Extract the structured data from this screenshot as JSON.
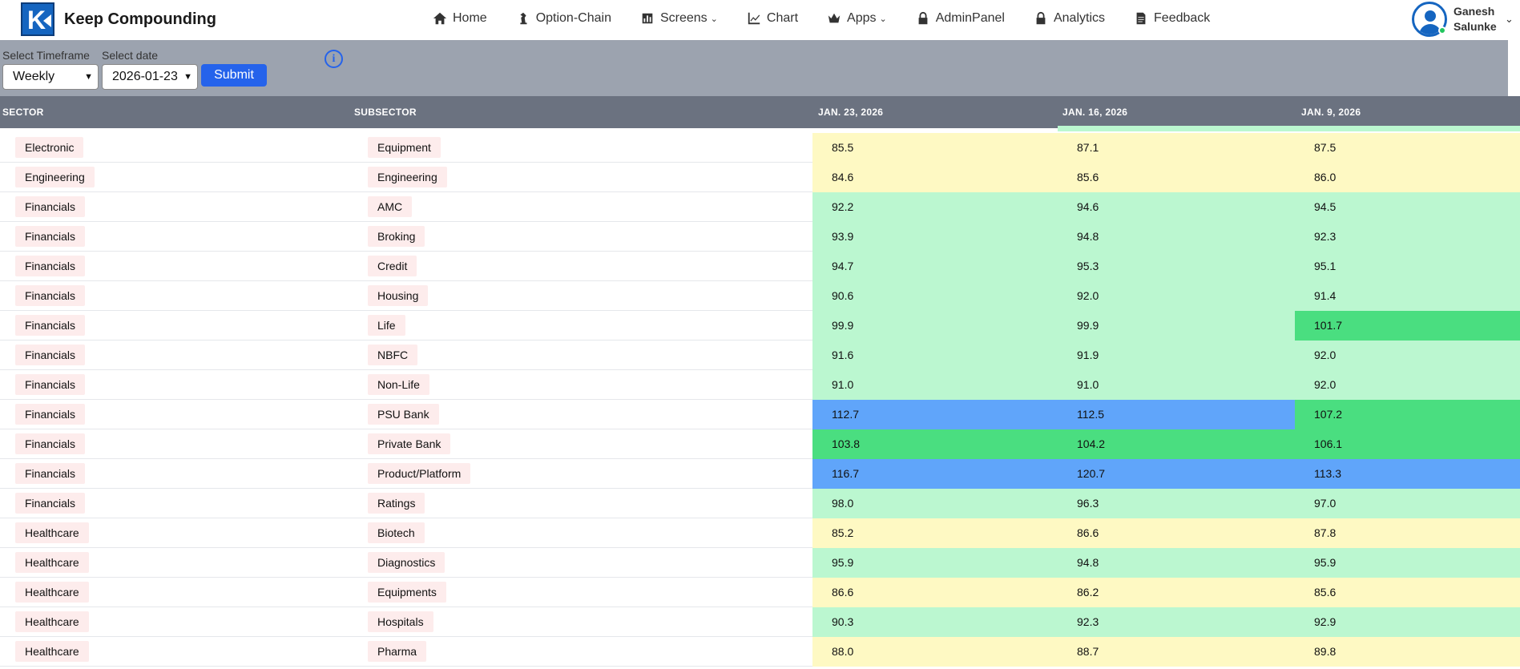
{
  "brand": {
    "name": "Keep Compounding"
  },
  "nav": [
    {
      "label": "Home",
      "icon": "home-icon"
    },
    {
      "label": "Option-Chain",
      "icon": "chess-piece-icon"
    },
    {
      "label": "Screens",
      "icon": "chart-bar-icon",
      "dropdown": true
    },
    {
      "label": "Chart",
      "icon": "line-chart-icon"
    },
    {
      "label": "Apps",
      "icon": "crown-icon",
      "dropdown": true
    },
    {
      "label": "AdminPanel",
      "icon": "lock-icon"
    },
    {
      "label": "Analytics",
      "icon": "lock-icon"
    },
    {
      "label": "Feedback",
      "icon": "document-icon"
    }
  ],
  "user": {
    "first_name": "Ganesh",
    "last_name": "Salunke"
  },
  "filters": {
    "timeframe_label": "Select Timeframe",
    "timeframe_value": "Weekly",
    "date_label": "Select date",
    "date_value": "2026-01-23",
    "submit_label": "Submit"
  },
  "table": {
    "headers": [
      "SECTOR",
      "SUBSECTOR",
      "JAN. 23, 2026",
      "JAN. 16, 2026",
      "JAN. 9, 2026"
    ],
    "colors": {
      "yellow": "#fef9c3",
      "light_green": "#bbf7d0",
      "green": "#4ade80",
      "blue": "#60a5fa"
    },
    "rows": [
      {
        "sector": "Electronic",
        "subsector": "Equipment",
        "values": [
          "85.5",
          "87.1",
          "87.5"
        ],
        "bands": [
          "yellow",
          "yellow",
          "yellow"
        ]
      },
      {
        "sector": "Engineering",
        "subsector": "Engineering",
        "values": [
          "84.6",
          "85.6",
          "86.0"
        ],
        "bands": [
          "yellow",
          "yellow",
          "yellow"
        ]
      },
      {
        "sector": "Financials",
        "subsector": "AMC",
        "values": [
          "92.2",
          "94.6",
          "94.5"
        ],
        "bands": [
          "light_green",
          "light_green",
          "light_green"
        ]
      },
      {
        "sector": "Financials",
        "subsector": "Broking",
        "values": [
          "93.9",
          "94.8",
          "92.3"
        ],
        "bands": [
          "light_green",
          "light_green",
          "light_green"
        ]
      },
      {
        "sector": "Financials",
        "subsector": "Credit",
        "values": [
          "94.7",
          "95.3",
          "95.1"
        ],
        "bands": [
          "light_green",
          "light_green",
          "light_green"
        ]
      },
      {
        "sector": "Financials",
        "subsector": "Housing",
        "values": [
          "90.6",
          "92.0",
          "91.4"
        ],
        "bands": [
          "light_green",
          "light_green",
          "light_green"
        ]
      },
      {
        "sector": "Financials",
        "subsector": "Life",
        "values": [
          "99.9",
          "99.9",
          "101.7"
        ],
        "bands": [
          "light_green",
          "light_green",
          "green"
        ]
      },
      {
        "sector": "Financials",
        "subsector": "NBFC",
        "values": [
          "91.6",
          "91.9",
          "92.0"
        ],
        "bands": [
          "light_green",
          "light_green",
          "light_green"
        ]
      },
      {
        "sector": "Financials",
        "subsector": "Non-Life",
        "values": [
          "91.0",
          "91.0",
          "92.0"
        ],
        "bands": [
          "light_green",
          "light_green",
          "light_green"
        ]
      },
      {
        "sector": "Financials",
        "subsector": "PSU Bank",
        "values": [
          "112.7",
          "112.5",
          "107.2"
        ],
        "bands": [
          "blue",
          "blue",
          "green"
        ]
      },
      {
        "sector": "Financials",
        "subsector": "Private Bank",
        "values": [
          "103.8",
          "104.2",
          "106.1"
        ],
        "bands": [
          "green",
          "green",
          "green"
        ]
      },
      {
        "sector": "Financials",
        "subsector": "Product/Platform",
        "values": [
          "116.7",
          "120.7",
          "113.3"
        ],
        "bands": [
          "blue",
          "blue",
          "blue"
        ]
      },
      {
        "sector": "Financials",
        "subsector": "Ratings",
        "values": [
          "98.0",
          "96.3",
          "97.0"
        ],
        "bands": [
          "light_green",
          "light_green",
          "light_green"
        ]
      },
      {
        "sector": "Healthcare",
        "subsector": "Biotech",
        "values": [
          "85.2",
          "86.6",
          "87.8"
        ],
        "bands": [
          "yellow",
          "yellow",
          "yellow"
        ]
      },
      {
        "sector": "Healthcare",
        "subsector": "Diagnostics",
        "values": [
          "95.9",
          "94.8",
          "95.9"
        ],
        "bands": [
          "light_green",
          "light_green",
          "light_green"
        ]
      },
      {
        "sector": "Healthcare",
        "subsector": "Equipments",
        "values": [
          "86.6",
          "86.2",
          "85.6"
        ],
        "bands": [
          "yellow",
          "yellow",
          "yellow"
        ]
      },
      {
        "sector": "Healthcare",
        "subsector": "Hospitals",
        "values": [
          "90.3",
          "92.3",
          "92.9"
        ],
        "bands": [
          "light_green",
          "light_green",
          "light_green"
        ]
      },
      {
        "sector": "Healthcare",
        "subsector": "Pharma",
        "values": [
          "88.0",
          "88.7",
          "89.8"
        ],
        "bands": [
          "yellow",
          "yellow",
          "yellow"
        ]
      }
    ]
  }
}
